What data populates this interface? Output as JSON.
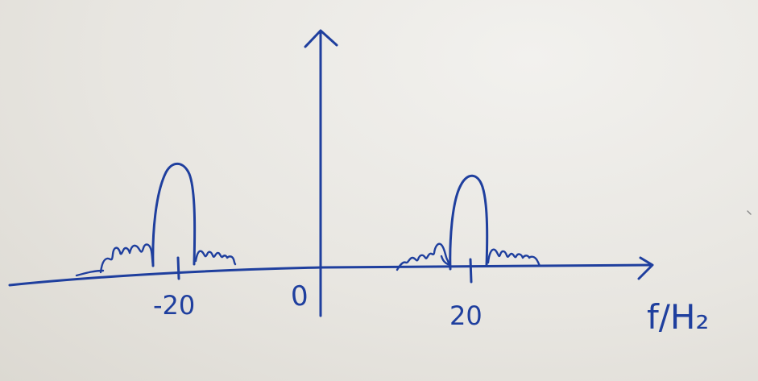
{
  "diagram": {
    "origin_label": "0",
    "left_tick_label": "-20",
    "right_tick_label": "20",
    "axis_label": "f/H₂",
    "ink_color": "#1f3f9e",
    "paper_color": "#e9e7e2"
  }
}
